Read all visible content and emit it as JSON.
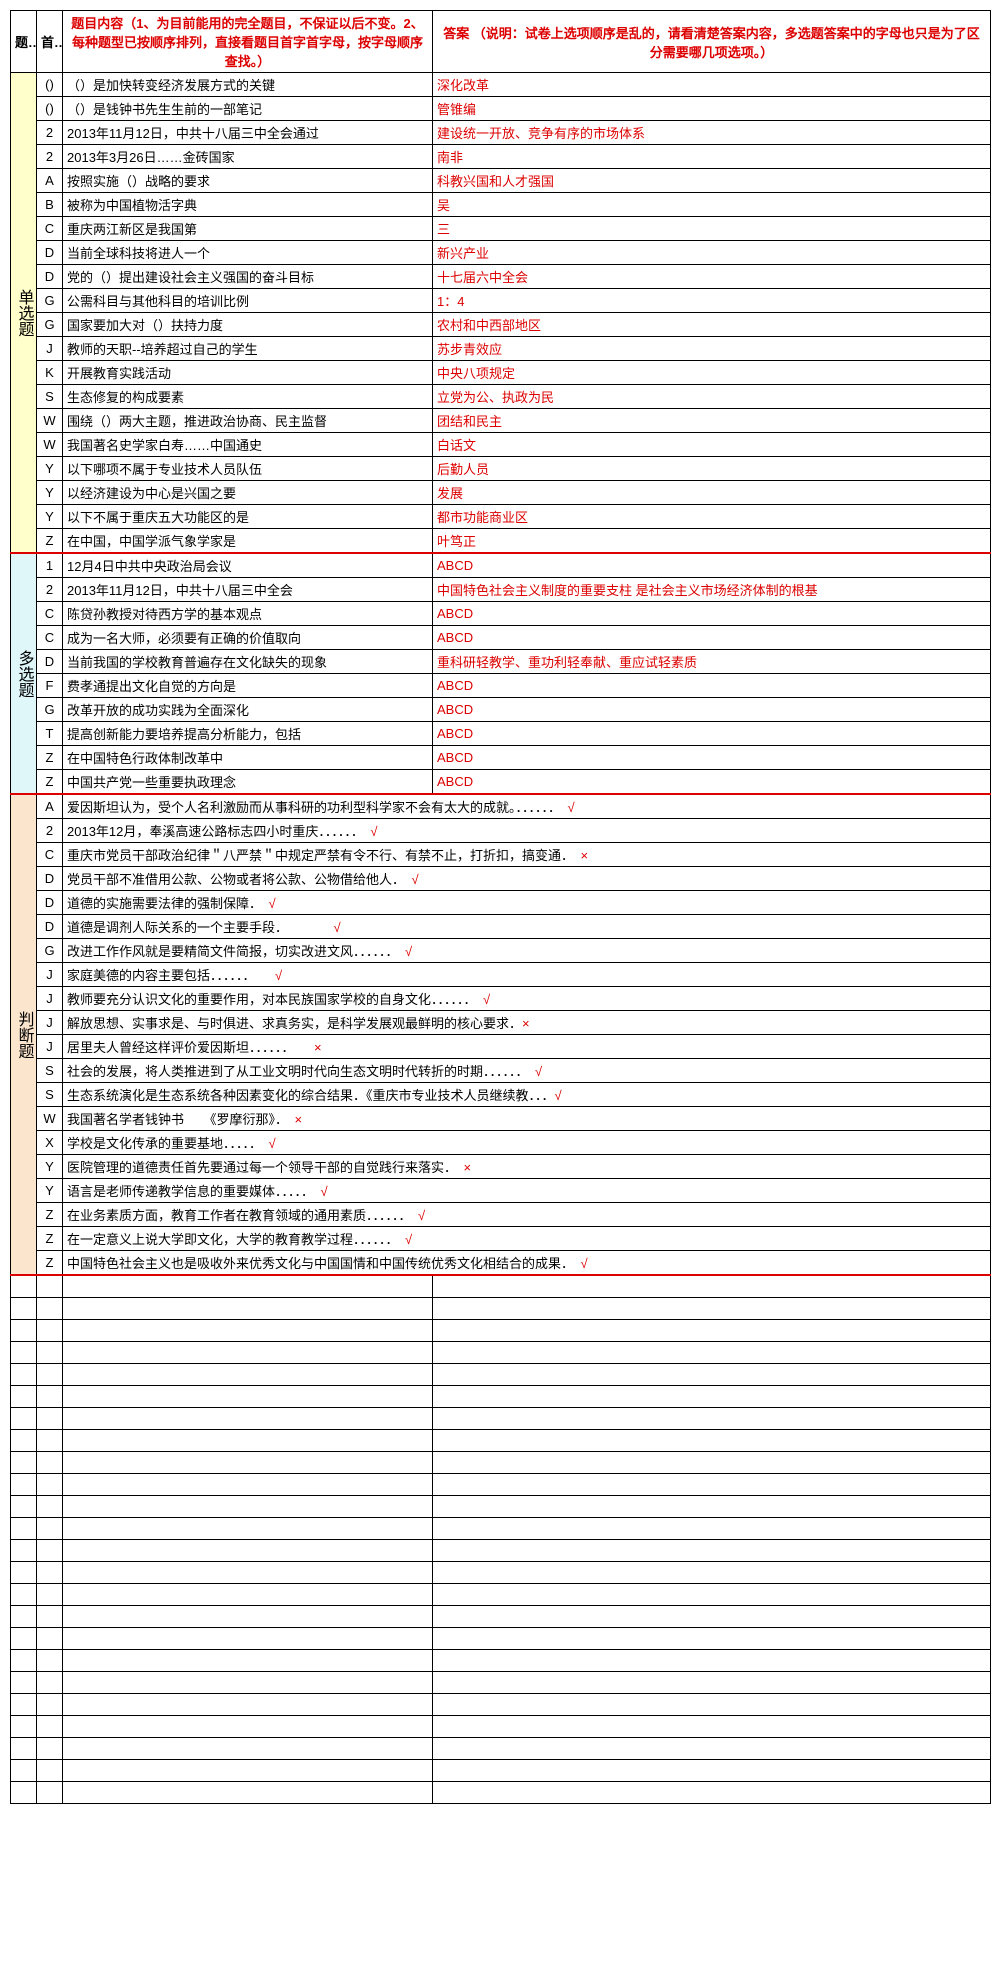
{
  "colors": {
    "red": "#d00",
    "bg_yellow": "#ffffcc",
    "bg_cyan": "#e0f7fa",
    "bg_orange": "#fce5cd",
    "border": "#000"
  },
  "header": {
    "col_type": "题型",
    "col_letter": "首字",
    "col_question": "题目内容（1、为目前能用的完全题目，不保证以后不变。2、每种题型已按顺序排列，直接看题目首字首字母，按字母顺序查找。）",
    "col_answer": "答案 （说明：试卷上选项顺序是乱的，请看清楚答案内容，多选题答案中的字母也只是为了区分需要哪几项选项。）"
  },
  "sections": [
    {
      "label": "单选题",
      "bg": "bg-yellow",
      "rows": [
        {
          "letter": "()",
          "q": "（）是加快转变经济发展方式的关键",
          "a": "深化改革"
        },
        {
          "letter": "()",
          "q": "（）是钱钟书先生生前的一部笔记",
          "a": "管锥编"
        },
        {
          "letter": "2",
          "q": "2013年11月12日，中共十八届三中全会通过",
          "a": "建设统一开放、竞争有序的市场体系"
        },
        {
          "letter": "2",
          "q": "2013年3月26日……金砖国家",
          "a": "南非"
        },
        {
          "letter": "A",
          "q": "按照实施（）战略的要求",
          "a": "科教兴国和人才强国"
        },
        {
          "letter": "B",
          "q": "被称为中国植物活字典",
          "a": "吴"
        },
        {
          "letter": "C",
          "q": "重庆两江新区是我国第",
          "a": "三"
        },
        {
          "letter": "D",
          "q": "当前全球科技将进人一个",
          "a": "新兴产业"
        },
        {
          "letter": "D",
          "q": "党的（）提出建设社会主义强国的奋斗目标",
          "a": "十七届六中全会"
        },
        {
          "letter": "G",
          "q": "公需科目与其他科目的培训比例",
          "a": "1：4"
        },
        {
          "letter": "G",
          "q": "国家要加大对（）扶持力度",
          "a": "农村和中西部地区"
        },
        {
          "letter": "J",
          "q": "教师的天职--培养超过自己的学生",
          "a": "苏步青效应"
        },
        {
          "letter": "K",
          "q": "开展教育实践活动",
          "a": "中央八项规定"
        },
        {
          "letter": "S",
          "q": "生态修复的构成要素",
          "a": "立党为公、执政为民"
        },
        {
          "letter": "W",
          "q": "围绕（）两大主题，推进政治协商、民主监督",
          "a": "团结和民主"
        },
        {
          "letter": "W",
          "q": "我国著名史学家白寿……中国通史",
          "a": "白话文"
        },
        {
          "letter": "Y",
          "q": "以下哪项不属于专业技术人员队伍",
          "a": "后勤人员"
        },
        {
          "letter": "Y",
          "q": "以经济建设为中心是兴国之要",
          "a": "发展"
        },
        {
          "letter": "Y",
          "q": "以下不属于重庆五大功能区的是",
          "a": "都市功能商业区"
        },
        {
          "letter": "Z",
          "q": "在中国，中国学派气象学家是",
          "a": "叶笃正"
        }
      ]
    },
    {
      "label": "多选题",
      "bg": "bg-cyan",
      "rows": [
        {
          "letter": "1",
          "q": "12月4日中共中央政治局会议",
          "a": "ABCD"
        },
        {
          "letter": "2",
          "q": "2013年11月12日，中共十八届三中全会",
          "a": "中国特色社会主义制度的重要支柱   是社会主义市场经济体制的根基"
        },
        {
          "letter": "C",
          "q": "陈贷孙教授对待西方学的基本观点",
          "a": "ABCD"
        },
        {
          "letter": "C",
          "q": "成为一名大师，必须要有正确的价值取向",
          "a": "ABCD"
        },
        {
          "letter": "D",
          "q": "当前我国的学校教育普遍存在文化缺失的现象",
          "a": "重科研轻教学、重功利轻奉献、重应试轻素质"
        },
        {
          "letter": "F",
          "q": "费孝通提出文化自觉的方向是",
          "a": "ABCD"
        },
        {
          "letter": "G",
          "q": "改革开放的成功实践为全面深化",
          "a": "ABCD"
        },
        {
          "letter": "T",
          "q": "提高创新能力要培养提高分析能力，包括",
          "a": "ABCD"
        },
        {
          "letter": "Z",
          "q": "在中国特色行政体制改革中",
          "a": "ABCD"
        },
        {
          "letter": "Z",
          "q": "中国共产党一些重要执政理念",
          "a": "ABCD"
        }
      ]
    },
    {
      "label": "判断题",
      "bg": "bg-orange",
      "rows": [
        {
          "letter": "A",
          "j": "爱因斯坦认为，受个人名利激励而从事科研的功利型科学家不会有太大的成就。．．．．．．　√"
        },
        {
          "letter": "2",
          "j": "2013年12月，奉溪高速公路标志四小时重庆．．．．．．　√"
        },
        {
          "letter": "C",
          "j": "重庆市党员干部政治纪律＂八严禁＂中规定严禁有令不行、有禁不止，打折扣，搞变通．　×"
        },
        {
          "letter": "D",
          "j": "党员干部不准借用公款、公物或者将公款、公物借给他人．　√"
        },
        {
          "letter": "D",
          "j": "道德的实施需要法律的强制保障．　√"
        },
        {
          "letter": "D",
          "j": "道德是调剂人际关系的一个主要手段．　　　　√"
        },
        {
          "letter": "G",
          "j": "改进工作作风就是要精简文件简报，切实改进文风．．．．．．　√"
        },
        {
          "letter": "J",
          "j": "家庭美德的内容主要包括．．．．．．　　√"
        },
        {
          "letter": "J",
          "j": "教师要充分认识文化的重要作用，对本民族国家学校的自身文化．．．．．．　√"
        },
        {
          "letter": "J",
          "j": "解放思想、实事求是、与时俱进、求真务实，是科学发展观最鲜明的核心要求．×"
        },
        {
          "letter": "J",
          "j": "居里夫人曾经这样评价爱因斯坦．．．．．．　　×"
        },
        {
          "letter": "S",
          "j": "社会的发展，将人类推进到了从工业文明时代向生态文明时代转折的时期．．．．．．　√"
        },
        {
          "letter": "S",
          "j": "生态系统演化是生态系统各种因素变化的综合结果．《重庆市专业技术人员继续教．．．√"
        },
        {
          "letter": "W",
          "j": "我国著名学者钱钟书　　《罗摩衍那》．　×"
        },
        {
          "letter": "X",
          "j": "学校是文化传承的重要基地．．．．．　√"
        },
        {
          "letter": "Y",
          "j": "医院管理的道德责任首先要通过每一个领导干部的自觉践行来落实．　×"
        },
        {
          "letter": "Y",
          "j": "语言是老师传递教学信息的重要媒体．．．．．　√"
        },
        {
          "letter": "Z",
          "j": "在业务素质方面，教育工作者在教育领域的通用素质．．．．．．　√"
        },
        {
          "letter": "Z",
          "j": "在一定意义上说大学即文化，大学的教育教学过程．．．．．．　√"
        },
        {
          "letter": "Z",
          "j": "中国特色社会主义也是吸收外来优秀文化与中国国情和中国传统优秀文化相结合的成果．　√"
        }
      ]
    }
  ],
  "emptyRows": 24
}
